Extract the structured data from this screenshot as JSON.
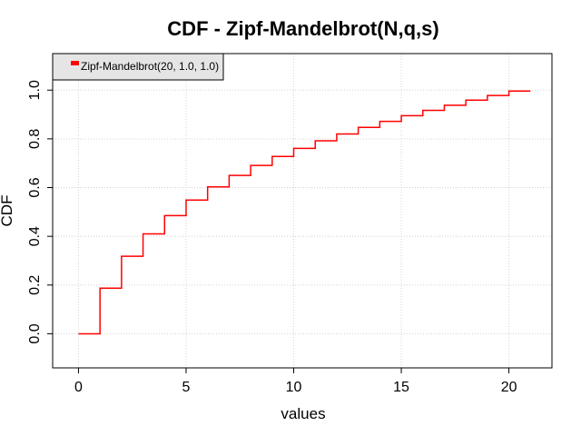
{
  "chart_data": {
    "type": "line",
    "step": true,
    "title": "CDF - Zipf-Mandelbrot(N,q,s)",
    "xlabel": "values",
    "ylabel": "CDF",
    "xlim": [
      -1.2,
      22.0
    ],
    "ylim": [
      -0.14,
      1.15
    ],
    "xticks": [
      0,
      5,
      10,
      15,
      20
    ],
    "yticks": [
      0.0,
      0.2,
      0.4,
      0.6,
      0.8,
      1.0
    ],
    "xtick_labels": [
      "0",
      "5",
      "10",
      "15",
      "20"
    ],
    "ytick_labels": [
      "0.0",
      "0.2",
      "0.4",
      "0.6",
      "0.8",
      "1.0"
    ],
    "grid": true,
    "legend_position": "top-left",
    "series": [
      {
        "name": "Zipf-Mandelbrot(20, 1.0, 1.0)",
        "color": "#ff0000",
        "x": [
          0,
          1,
          2,
          3,
          4,
          5,
          6,
          7,
          8,
          9,
          10,
          11,
          12,
          13,
          14,
          15,
          16,
          17,
          18,
          19,
          20,
          21
        ],
        "y": [
          0.0,
          0.187,
          0.318,
          0.41,
          0.485,
          0.549,
          0.603,
          0.65,
          0.691,
          0.728,
          0.761,
          0.792,
          0.82,
          0.847,
          0.872,
          0.895,
          0.917,
          0.938,
          0.959,
          0.978,
          0.996,
          0.996
        ]
      }
    ]
  }
}
